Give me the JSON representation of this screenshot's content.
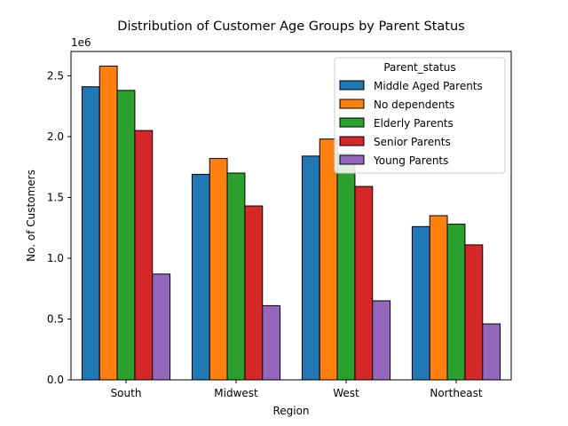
{
  "chart_data": {
    "type": "bar",
    "title": "Distribution of Customer Age Groups by Parent Status",
    "xlabel": "Region",
    "ylabel": "No. of Customers",
    "y_multiplier_label": "1e6",
    "categories": [
      "South",
      "Midwest",
      "West",
      "Northeast"
    ],
    "ylim": [
      0,
      2.7
    ],
    "yticks": [
      "0.0",
      "0.5",
      "1.0",
      "1.5",
      "2.0",
      "2.5"
    ],
    "legend": {
      "title": "Parent_status",
      "position": "top-right"
    },
    "grid": false,
    "series": [
      {
        "name": "Middle Aged Parents",
        "color": "#1f77b4",
        "values": [
          2.41,
          1.69,
          1.84,
          1.26
        ]
      },
      {
        "name": "No dependents",
        "color": "#ff7f0e",
        "values": [
          2.58,
          1.82,
          1.98,
          1.35
        ]
      },
      {
        "name": "Elderly Parents",
        "color": "#2ca02c",
        "values": [
          2.38,
          1.7,
          1.86,
          1.28
        ]
      },
      {
        "name": "Senior Parents",
        "color": "#d62728",
        "values": [
          2.05,
          1.43,
          1.59,
          1.11
        ]
      },
      {
        "name": "Young Parents",
        "color": "#9467bd",
        "values": [
          0.87,
          0.61,
          0.65,
          0.46
        ]
      }
    ]
  }
}
